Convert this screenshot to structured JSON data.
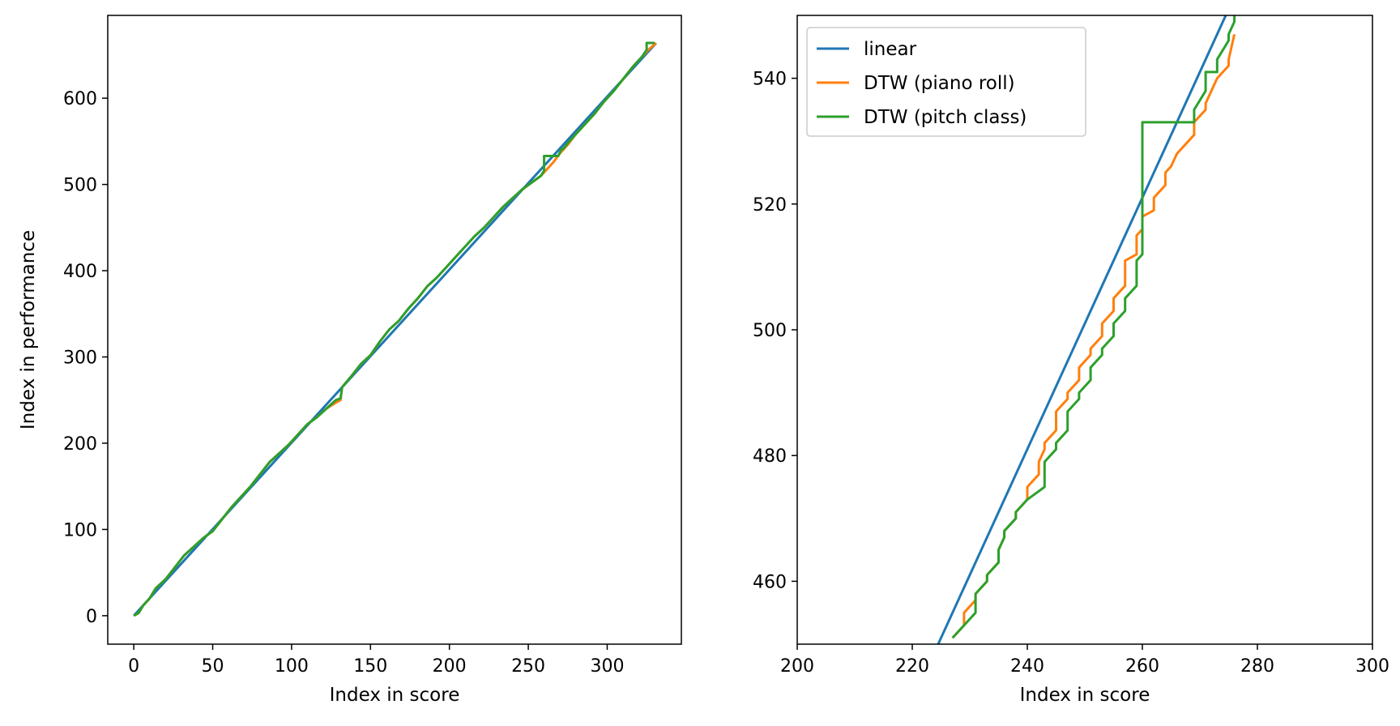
{
  "chart_data": [
    {
      "type": "line",
      "title": "",
      "xlabel": "Index in score",
      "ylabel": "Index in performance",
      "xlim": [
        -16.5,
        347
      ],
      "ylim": [
        -33,
        696
      ],
      "xticks": [
        0,
        50,
        100,
        150,
        200,
        250,
        300
      ],
      "yticks": [
        0,
        100,
        200,
        300,
        400,
        500,
        600
      ],
      "grid": false,
      "legend": null,
      "series": [
        {
          "name": "linear",
          "color": "#1f77b4",
          "x": [
            0,
            331
          ],
          "y": [
            0,
            664
          ]
        },
        {
          "name": "DTW (piano roll)",
          "color": "#ff7f0e",
          "x": [
            0,
            3,
            6,
            10,
            14,
            20,
            26,
            32,
            38,
            44,
            50,
            56,
            62,
            68,
            74,
            80,
            86,
            92,
            98,
            104,
            110,
            116,
            122,
            128,
            131,
            132,
            138,
            144,
            150,
            156,
            162,
            168,
            174,
            180,
            186,
            192,
            198,
            204,
            210,
            216,
            222,
            228,
            234,
            240,
            246,
            252,
            258,
            261,
            262,
            266,
            270,
            275,
            280,
            286,
            292,
            298,
            304,
            310,
            316,
            322,
            326,
            331
          ],
          "y": [
            0,
            3,
            12,
            20,
            32,
            42,
            56,
            70,
            80,
            90,
            98,
            112,
            126,
            138,
            150,
            164,
            178,
            188,
            198,
            210,
            222,
            230,
            240,
            247,
            250,
            265,
            278,
            292,
            302,
            318,
            332,
            342,
            356,
            368,
            382,
            392,
            404,
            416,
            428,
            440,
            450,
            462,
            474,
            484,
            494,
            502,
            510,
            516,
            518,
            526,
            536,
            546,
            558,
            570,
            582,
            596,
            608,
            622,
            636,
            648,
            656,
            664
          ]
        },
        {
          "name": "DTW (pitch class)",
          "color": "#2ca02c",
          "x": [
            0,
            3,
            6,
            10,
            14,
            20,
            26,
            32,
            38,
            44,
            50,
            56,
            62,
            68,
            74,
            80,
            86,
            92,
            98,
            104,
            110,
            116,
            122,
            128,
            131,
            132,
            138,
            144,
            150,
            156,
            162,
            168,
            174,
            180,
            186,
            192,
            198,
            204,
            210,
            216,
            222,
            228,
            234,
            240,
            246,
            252,
            258,
            260,
            260,
            269,
            271,
            272,
            276,
            280,
            286,
            292,
            298,
            304,
            310,
            316,
            322,
            325,
            325,
            330
          ],
          "y": [
            0,
            3,
            12,
            20,
            32,
            42,
            56,
            70,
            80,
            90,
            98,
            112,
            126,
            138,
            150,
            164,
            178,
            188,
            198,
            210,
            222,
            230,
            240,
            250,
            252,
            265,
            278,
            292,
            302,
            318,
            332,
            342,
            356,
            368,
            382,
            392,
            404,
            416,
            428,
            440,
            450,
            462,
            474,
            484,
            494,
            502,
            510,
            516,
            533,
            533,
            541,
            541,
            550,
            558,
            570,
            582,
            596,
            608,
            622,
            636,
            648,
            656,
            664,
            664
          ]
        }
      ]
    },
    {
      "type": "line",
      "title": "",
      "xlabel": "Index in score",
      "ylabel": "",
      "xlim": [
        200,
        300
      ],
      "ylim": [
        450,
        550
      ],
      "xticks": [
        200,
        220,
        240,
        260,
        280,
        300
      ],
      "yticks": [
        460,
        480,
        500,
        520,
        540
      ],
      "grid": false,
      "legend": "top-left",
      "series": [
        {
          "name": "linear",
          "color": "#1f77b4",
          "x": [
            224.5,
            274.5
          ],
          "y": [
            450,
            550
          ]
        },
        {
          "name": "DTW (piano roll)",
          "color": "#ff7f0e",
          "x": [
            227,
            229,
            229,
            231,
            231,
            233,
            233,
            235,
            235,
            236,
            236,
            238,
            238,
            240,
            240,
            242,
            242,
            243,
            243,
            245,
            245,
            247,
            247,
            249,
            249,
            251,
            251,
            253,
            253,
            255,
            255,
            257,
            257,
            259,
            259,
            260,
            260,
            262,
            262,
            264,
            264,
            265,
            265,
            266,
            266,
            269,
            269,
            271,
            271,
            272,
            272,
            273,
            273,
            275,
            275,
            276
          ],
          "y": [
            451,
            453,
            455,
            457,
            458,
            460,
            461,
            463,
            465,
            467,
            468,
            470,
            471,
            473,
            475,
            477,
            479,
            481,
            482,
            484,
            487,
            489,
            490,
            492,
            494,
            496,
            497,
            499,
            501,
            503,
            505,
            507,
            511,
            512,
            515,
            516,
            518,
            519,
            521,
            523,
            525,
            526,
            526,
            528,
            528,
            531,
            533,
            535,
            536,
            538,
            538,
            540,
            540,
            542,
            543,
            547
          ]
        },
        {
          "name": "DTW (pitch class)",
          "color": "#2ca02c",
          "x": [
            227,
            229,
            229,
            231,
            231,
            233,
            233,
            235,
            235,
            236,
            236,
            238,
            238,
            240,
            240,
            243,
            243,
            245,
            245,
            247,
            247,
            249,
            249,
            251,
            251,
            253,
            253,
            255,
            255,
            257,
            257,
            259,
            259,
            260,
            260,
            269,
            269,
            271,
            271,
            273,
            273,
            275,
            275,
            276,
            276
          ],
          "y": [
            451,
            453,
            453,
            455,
            458,
            460,
            461,
            463,
            465,
            467,
            468,
            470,
            471,
            473,
            473,
            475,
            479,
            481,
            482,
            484,
            487,
            489,
            490,
            492,
            494,
            496,
            497,
            499,
            501,
            503,
            505,
            507,
            511,
            512,
            533,
            533,
            535,
            538,
            541,
            541,
            543,
            546,
            547,
            549,
            550
          ]
        }
      ]
    }
  ]
}
